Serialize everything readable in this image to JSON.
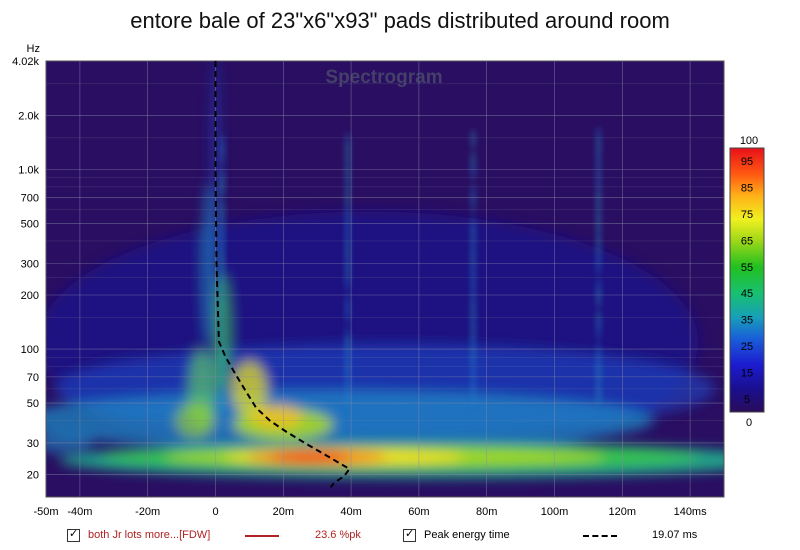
{
  "chart_data": {
    "type": "heatmap",
    "title": "entore bale of 23\"x6\"x93\" pads distributed around room",
    "watermark": "Spectrogram",
    "y_unit": "Hz",
    "y_scale": "log",
    "ylim": [
      15,
      4020
    ],
    "yticks": [
      {
        "label": "4.02k",
        "v": 4020
      },
      {
        "label": "2.0k",
        "v": 2000
      },
      {
        "label": "1.0k",
        "v": 1000
      },
      {
        "label": "700",
        "v": 700
      },
      {
        "label": "500",
        "v": 500
      },
      {
        "label": "300",
        "v": 300
      },
      {
        "label": "200",
        "v": 200
      },
      {
        "label": "100",
        "v": 100
      },
      {
        "label": "70",
        "v": 70
      },
      {
        "label": "50",
        "v": 50
      },
      {
        "label": "30",
        "v": 30
      },
      {
        "label": "20",
        "v": 20
      }
    ],
    "x_unit": "ms",
    "xlim": [
      -50,
      150
    ],
    "xticks": [
      {
        "label": "-50m",
        "v": -50
      },
      {
        "label": "-40m",
        "v": -40
      },
      {
        "label": "-20m",
        "v": -20
      },
      {
        "label": "0",
        "v": 0
      },
      {
        "label": "20m",
        "v": 20
      },
      {
        "label": "40m",
        "v": 40
      },
      {
        "label": "60m",
        "v": 60
      },
      {
        "label": "80m",
        "v": 80
      },
      {
        "label": "100m",
        "v": 100
      },
      {
        "label": "120m",
        "v": 120
      },
      {
        "label": "140ms",
        "v": 140
      }
    ],
    "colorbar": {
      "min": 0,
      "max": 100,
      "ticks": [
        100,
        95,
        85,
        75,
        65,
        55,
        45,
        35,
        25,
        15,
        5,
        0
      ]
    },
    "peak_energy_curve": [
      {
        "t": 0,
        "f": 4020
      },
      {
        "t": 0,
        "f": 1000
      },
      {
        "t": 0.3,
        "f": 300
      },
      {
        "t": 1,
        "f": 110
      },
      {
        "t": 3,
        "f": 90
      },
      {
        "t": 6,
        "f": 72
      },
      {
        "t": 9,
        "f": 58
      },
      {
        "t": 12,
        "f": 47
      },
      {
        "t": 16,
        "f": 40
      },
      {
        "t": 21,
        "f": 34.5
      },
      {
        "t": 27,
        "f": 29.5
      },
      {
        "t": 32,
        "f": 26
      },
      {
        "t": 36,
        "f": 23.5
      },
      {
        "t": 39.5,
        "f": 21.5
      },
      {
        "t": 38,
        "f": 19.6
      },
      {
        "t": 35,
        "f": 18
      },
      {
        "t": 34,
        "f": 17
      }
    ],
    "legend": [
      {
        "checked": true,
        "name": "both Jr lots more...[FDW]",
        "value": "23.6 %pk",
        "color": "#b22222",
        "line": "solid"
      },
      {
        "checked": true,
        "name": "Peak energy time",
        "value": "19.07 ms",
        "color": "#000000",
        "line": "dashed"
      }
    ]
  }
}
